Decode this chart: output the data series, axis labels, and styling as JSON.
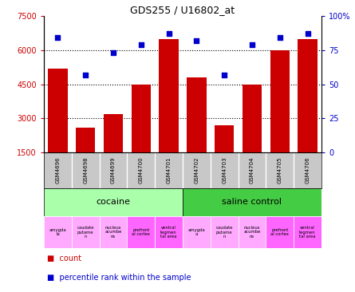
{
  "title": "GDS255 / U16802_at",
  "samples": [
    "GSM4696",
    "GSM4698",
    "GSM4699",
    "GSM4700",
    "GSM4701",
    "GSM4702",
    "GSM4703",
    "GSM4704",
    "GSM4705",
    "GSM4706"
  ],
  "counts": [
    5200,
    2600,
    3200,
    4500,
    6500,
    4800,
    2700,
    4500,
    6000,
    6500
  ],
  "percentiles": [
    84,
    57,
    73,
    79,
    87,
    82,
    57,
    79,
    84,
    87
  ],
  "ylim_left": [
    1500,
    7500
  ],
  "ylim_right": [
    0,
    100
  ],
  "yticks_left": [
    1500,
    3000,
    4500,
    6000,
    7500
  ],
  "yticks_right": [
    0,
    25,
    50,
    75,
    100
  ],
  "hlines": [
    3000,
    4500,
    6000
  ],
  "bar_color": "#cc0000",
  "dot_color": "#0000cc",
  "bar_bottom": 1500,
  "agent_groups": [
    {
      "label": "cocaine",
      "start": 0,
      "end": 5,
      "color": "#aaffaa"
    },
    {
      "label": "saline control",
      "start": 5,
      "end": 10,
      "color": "#44cc44"
    }
  ],
  "tissue_labels": [
    "amygda\nla",
    "caudate\nputame\nn",
    "nucleus\nacumbe\nns",
    "prefront\nal cortex",
    "ventral\ntegmen\ntal area",
    "amygda\na",
    "caudate\nputame\nn",
    "nucleus\nacumbe\nns",
    "prefront\nal cortex",
    "ventral\ntegmen\ntal area"
  ],
  "tissue_colors": [
    "#ffaaff",
    "#ffaaff",
    "#ffaaff",
    "#ff66ff",
    "#ff66ff",
    "#ffaaff",
    "#ffaaff",
    "#ffaaff",
    "#ff66ff",
    "#ff66ff"
  ],
  "sample_bg": "#c8c8c8",
  "legend_count_color": "#cc0000",
  "legend_pct_color": "#0000cc"
}
